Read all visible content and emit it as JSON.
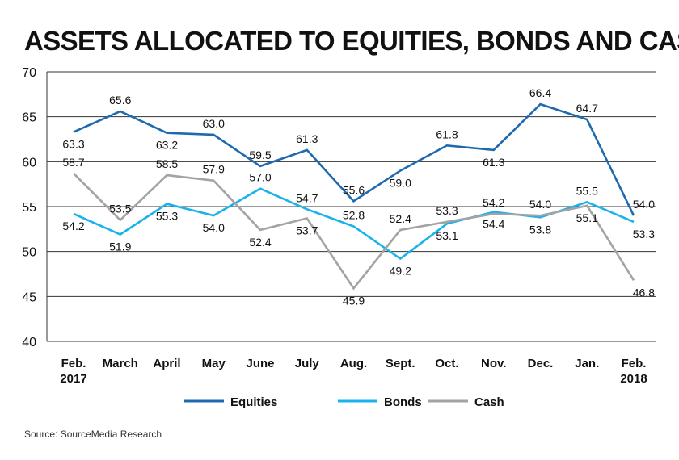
{
  "source": "Source: SourceMedia Research",
  "chart_data": {
    "type": "line",
    "title": "ASSETS ALLOCATED TO EQUITIES, BONDS AND CASH",
    "categories": [
      [
        "Feb.",
        "2017"
      ],
      [
        "March"
      ],
      [
        "April"
      ],
      [
        "May"
      ],
      [
        "June"
      ],
      [
        "July"
      ],
      [
        "Aug."
      ],
      [
        "Sept."
      ],
      [
        "Oct."
      ],
      [
        "Nov."
      ],
      [
        "Dec."
      ],
      [
        "Jan."
      ],
      [
        "Feb.",
        "2018"
      ]
    ],
    "ylim": [
      40,
      70
    ],
    "yticks": [
      40,
      45,
      50,
      55,
      60,
      65,
      70
    ],
    "grid": true,
    "legend_position": "bottom",
    "series": [
      {
        "name": "Equities",
        "color": "#1f6aaf",
        "values": [
          63.3,
          65.6,
          63.2,
          63.0,
          59.5,
          61.3,
          55.6,
          59.0,
          61.8,
          61.3,
          66.4,
          64.7,
          54.0
        ],
        "labels": [
          "63.3",
          "65.6",
          "63.2",
          "63.0",
          "59.5",
          "61.3",
          "55.6",
          "59.0",
          "61.8",
          "61.3",
          "66.4",
          "64.7",
          "54.0"
        ]
      },
      {
        "name": "Bonds",
        "color": "#19b2ec",
        "values": [
          54.2,
          51.9,
          55.3,
          54.0,
          57.0,
          54.7,
          52.8,
          49.2,
          53.1,
          54.4,
          53.8,
          55.5,
          53.3
        ],
        "labels": [
          "54.2",
          "51.9",
          "55.3",
          "54.0",
          "57.0",
          "54.7",
          "52.8",
          "49.2",
          "53.1",
          "54.4",
          "53.8",
          "55.5",
          "53.3"
        ]
      },
      {
        "name": "Cash",
        "color": "#a3a3a3",
        "values": [
          58.7,
          53.5,
          58.5,
          57.9,
          52.4,
          53.7,
          45.9,
          52.4,
          53.3,
          54.2,
          54.0,
          55.1,
          46.8
        ],
        "labels": [
          "58.7",
          "53.5",
          "58.5",
          "57.9",
          "52.4",
          "53.7",
          "45.9",
          "52.4",
          "53.3",
          "54.2",
          "54.0",
          "55.1",
          "46.8"
        ]
      }
    ]
  }
}
